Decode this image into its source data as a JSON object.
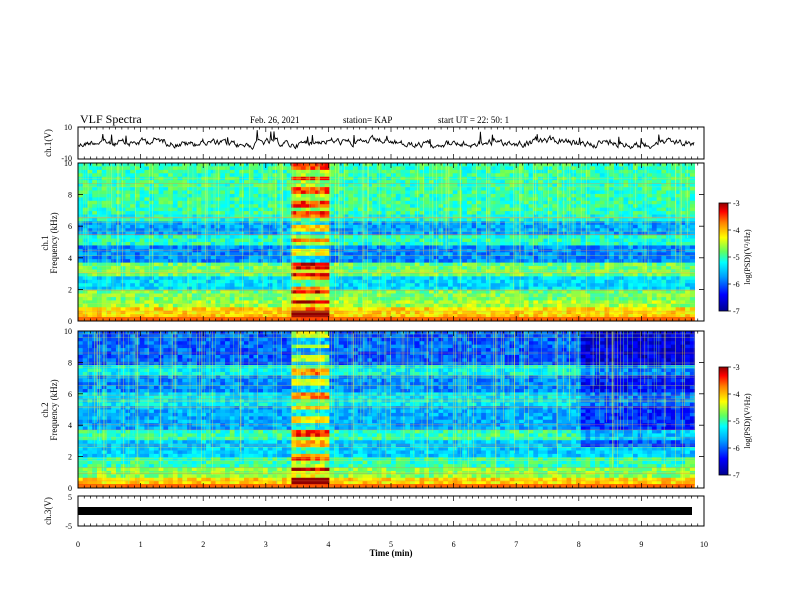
{
  "header": {
    "title": "VLF Spectra",
    "date": "Feb. 26, 2021",
    "station": "station= KAP",
    "start_ut": "start UT =  22: 50: 1"
  },
  "chart_data": [
    {
      "type": "line",
      "panel": "ch1-waveform",
      "ylabel": "ch.1(V)",
      "yticks": [
        "10",
        "-10"
      ],
      "ylim": [
        -10,
        10
      ],
      "xlim": [
        0,
        9.85
      ]
    },
    {
      "type": "heatmap",
      "panel": "ch1-spectrogram",
      "ylabel_top": "ch.1",
      "ylabel": "Frequency (kHz)",
      "yticks": [
        "0",
        "2",
        "4",
        "6",
        "8",
        "10"
      ],
      "ylim": [
        0,
        10
      ],
      "xlim": [
        0,
        9.85
      ],
      "burst_interval_min": [
        3.4,
        4.0
      ],
      "colorbar": {
        "label": "log(PSD)(V²/Hz)",
        "ticks": [
          "-3",
          "-4",
          "-5",
          "-6",
          "-7"
        ],
        "range": [
          -7,
          -3
        ]
      }
    },
    {
      "type": "heatmap",
      "panel": "ch2-spectrogram",
      "ylabel_top": "ch.2",
      "ylabel": "Frequency (kHz)",
      "yticks": [
        "0",
        "2",
        "4",
        "6",
        "8",
        "10"
      ],
      "ylim": [
        0,
        10
      ],
      "xlim": [
        0,
        9.85
      ],
      "burst_interval_min": [
        3.4,
        4.0
      ],
      "colorbar": {
        "label": "log(PSD)(V²/Hz)",
        "ticks": [
          "-3",
          "-4",
          "-5",
          "-6",
          "-7"
        ],
        "range": [
          -7,
          -3
        ]
      }
    },
    {
      "type": "line",
      "panel": "ch3-waveform",
      "ylabel": "ch.3(V)",
      "yticks": [
        "5",
        "-5"
      ],
      "ylim": [
        -5,
        5
      ],
      "xlim": [
        0,
        9.85
      ]
    }
  ],
  "xaxis": {
    "label": "Time (min)",
    "ticks": [
      "0",
      "1",
      "2",
      "3",
      "4",
      "5",
      "6",
      "7",
      "8",
      "9",
      "10"
    ],
    "range": [
      0,
      10
    ]
  },
  "colors": {
    "spectrum": [
      "#00008f",
      "#0000ff",
      "#00a0ff",
      "#00ffff",
      "#60ff60",
      "#ffff00",
      "#ff8000",
      "#ff0000",
      "#8f0000"
    ]
  }
}
